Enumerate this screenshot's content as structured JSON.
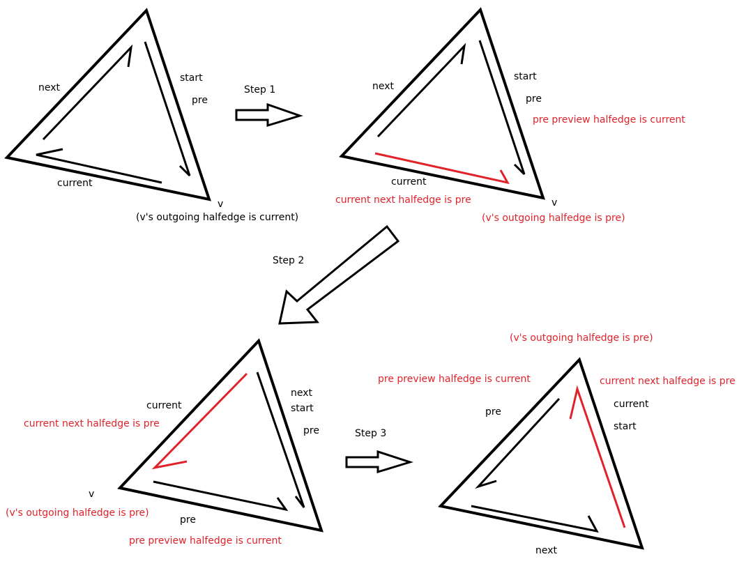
{
  "colors": {
    "black": "#000000",
    "red": "#e0232b",
    "background": "#ffffff"
  },
  "steps": {
    "step1": "Step 1",
    "step2": "Step 2",
    "step3": "Step 3"
  },
  "panel1": {
    "next": "next",
    "start": "start",
    "pre": "pre",
    "current": "current",
    "v": "v",
    "outgoing_note": "(v's outgoing halfedge is current)"
  },
  "panel2": {
    "next": "next",
    "start": "start",
    "pre": "pre",
    "pre_preview_note": "pre preview halfedge is current",
    "current": "current",
    "current_next_note": "current next halfedge is pre",
    "v": "v",
    "outgoing_note": "(v's outgoing halfedge is pre)"
  },
  "panel3": {
    "current": "current",
    "current_next_note": "current next halfedge is pre",
    "next": "next",
    "start": "start",
    "pre": "pre",
    "v": "v",
    "outgoing_note": "(v's outgoing halfedge is pre)",
    "pre_preview_note": "pre preview halfedge is current"
  },
  "panel4": {
    "outgoing_note": "(v's outgoing halfedge is pre)",
    "pre_preview_note": "pre preview halfedge is current",
    "current_next_note": "current next halfedge is pre",
    "pre": "pre",
    "current": "current",
    "start": "start",
    "next": "next"
  }
}
